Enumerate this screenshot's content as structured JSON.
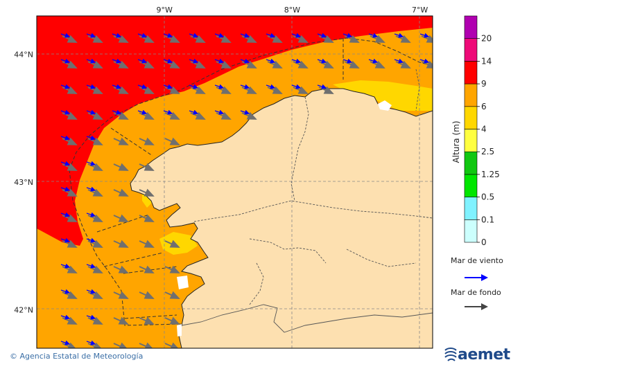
{
  "map": {
    "lon_ticks": [
      {
        "label": "9°W",
        "lon": -9
      },
      {
        "label": "8°W",
        "lon": -8
      },
      {
        "label": "7°W",
        "lon": -7
      }
    ],
    "lat_ticks": [
      {
        "label": "44°N",
        "lat": 44
      },
      {
        "label": "43°N",
        "lat": 43
      },
      {
        "label": "42°N",
        "lat": 42
      }
    ],
    "extent": {
      "lon_min": -10.0,
      "lon_max": -6.9,
      "lat_min": 41.7,
      "lat_max": 44.3
    }
  },
  "colorbar": {
    "title": "Altura (m)",
    "levels": [
      "0",
      "0.1",
      "0.5",
      "1.25",
      "2.5",
      "4",
      "6",
      "9",
      "14",
      "20"
    ],
    "colors": [
      "#ccfffd",
      "#80f2ff",
      "#00e600",
      "#11c711",
      "#ffff40",
      "#ffd700",
      "#ffa500",
      "#ff0000",
      "#ee0a78",
      "#b000b0"
    ]
  },
  "legend": {
    "wind_sea_label": "Mar de viento",
    "swell_label": "Mar de fondo",
    "wind_sea_color": "#0000ff",
    "swell_color": "#444444"
  },
  "footer": {
    "copyright": "© Agencia Estatal de Meteorología",
    "brand": "aemet"
  }
}
